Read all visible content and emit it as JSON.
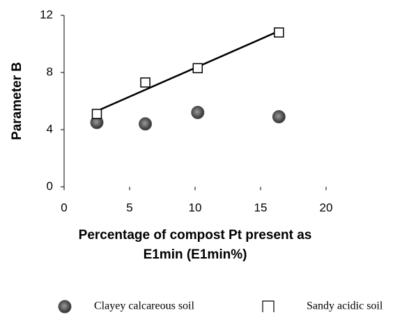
{
  "chart_data": {
    "type": "scatter",
    "xlabel": [
      "Percentage of compost Pt present as",
      "E1min (E1min%)"
    ],
    "ylabel": "Parameter B",
    "xlim": [
      0,
      20
    ],
    "xticks": [
      0,
      5,
      10,
      15,
      20
    ],
    "ylim": [
      0,
      12
    ],
    "yticks": [
      0,
      4,
      8,
      12
    ],
    "series": [
      {
        "name": "Clayey calcareous soil",
        "marker": "circle",
        "color": "#555555",
        "x": [
          2.5,
          6.2,
          10.2,
          16.4
        ],
        "values": [
          4.5,
          4.4,
          5.2,
          4.9
        ]
      },
      {
        "name": "Sandy acidic soil",
        "marker": "square",
        "color": "#000000",
        "x": [
          2.5,
          6.2,
          10.2,
          16.4
        ],
        "values": [
          5.1,
          7.3,
          8.3,
          10.8
        ]
      }
    ],
    "trendline": {
      "x": [
        2.5,
        16.4
      ],
      "values": [
        5.3,
        10.9
      ],
      "color": "#000000"
    }
  }
}
